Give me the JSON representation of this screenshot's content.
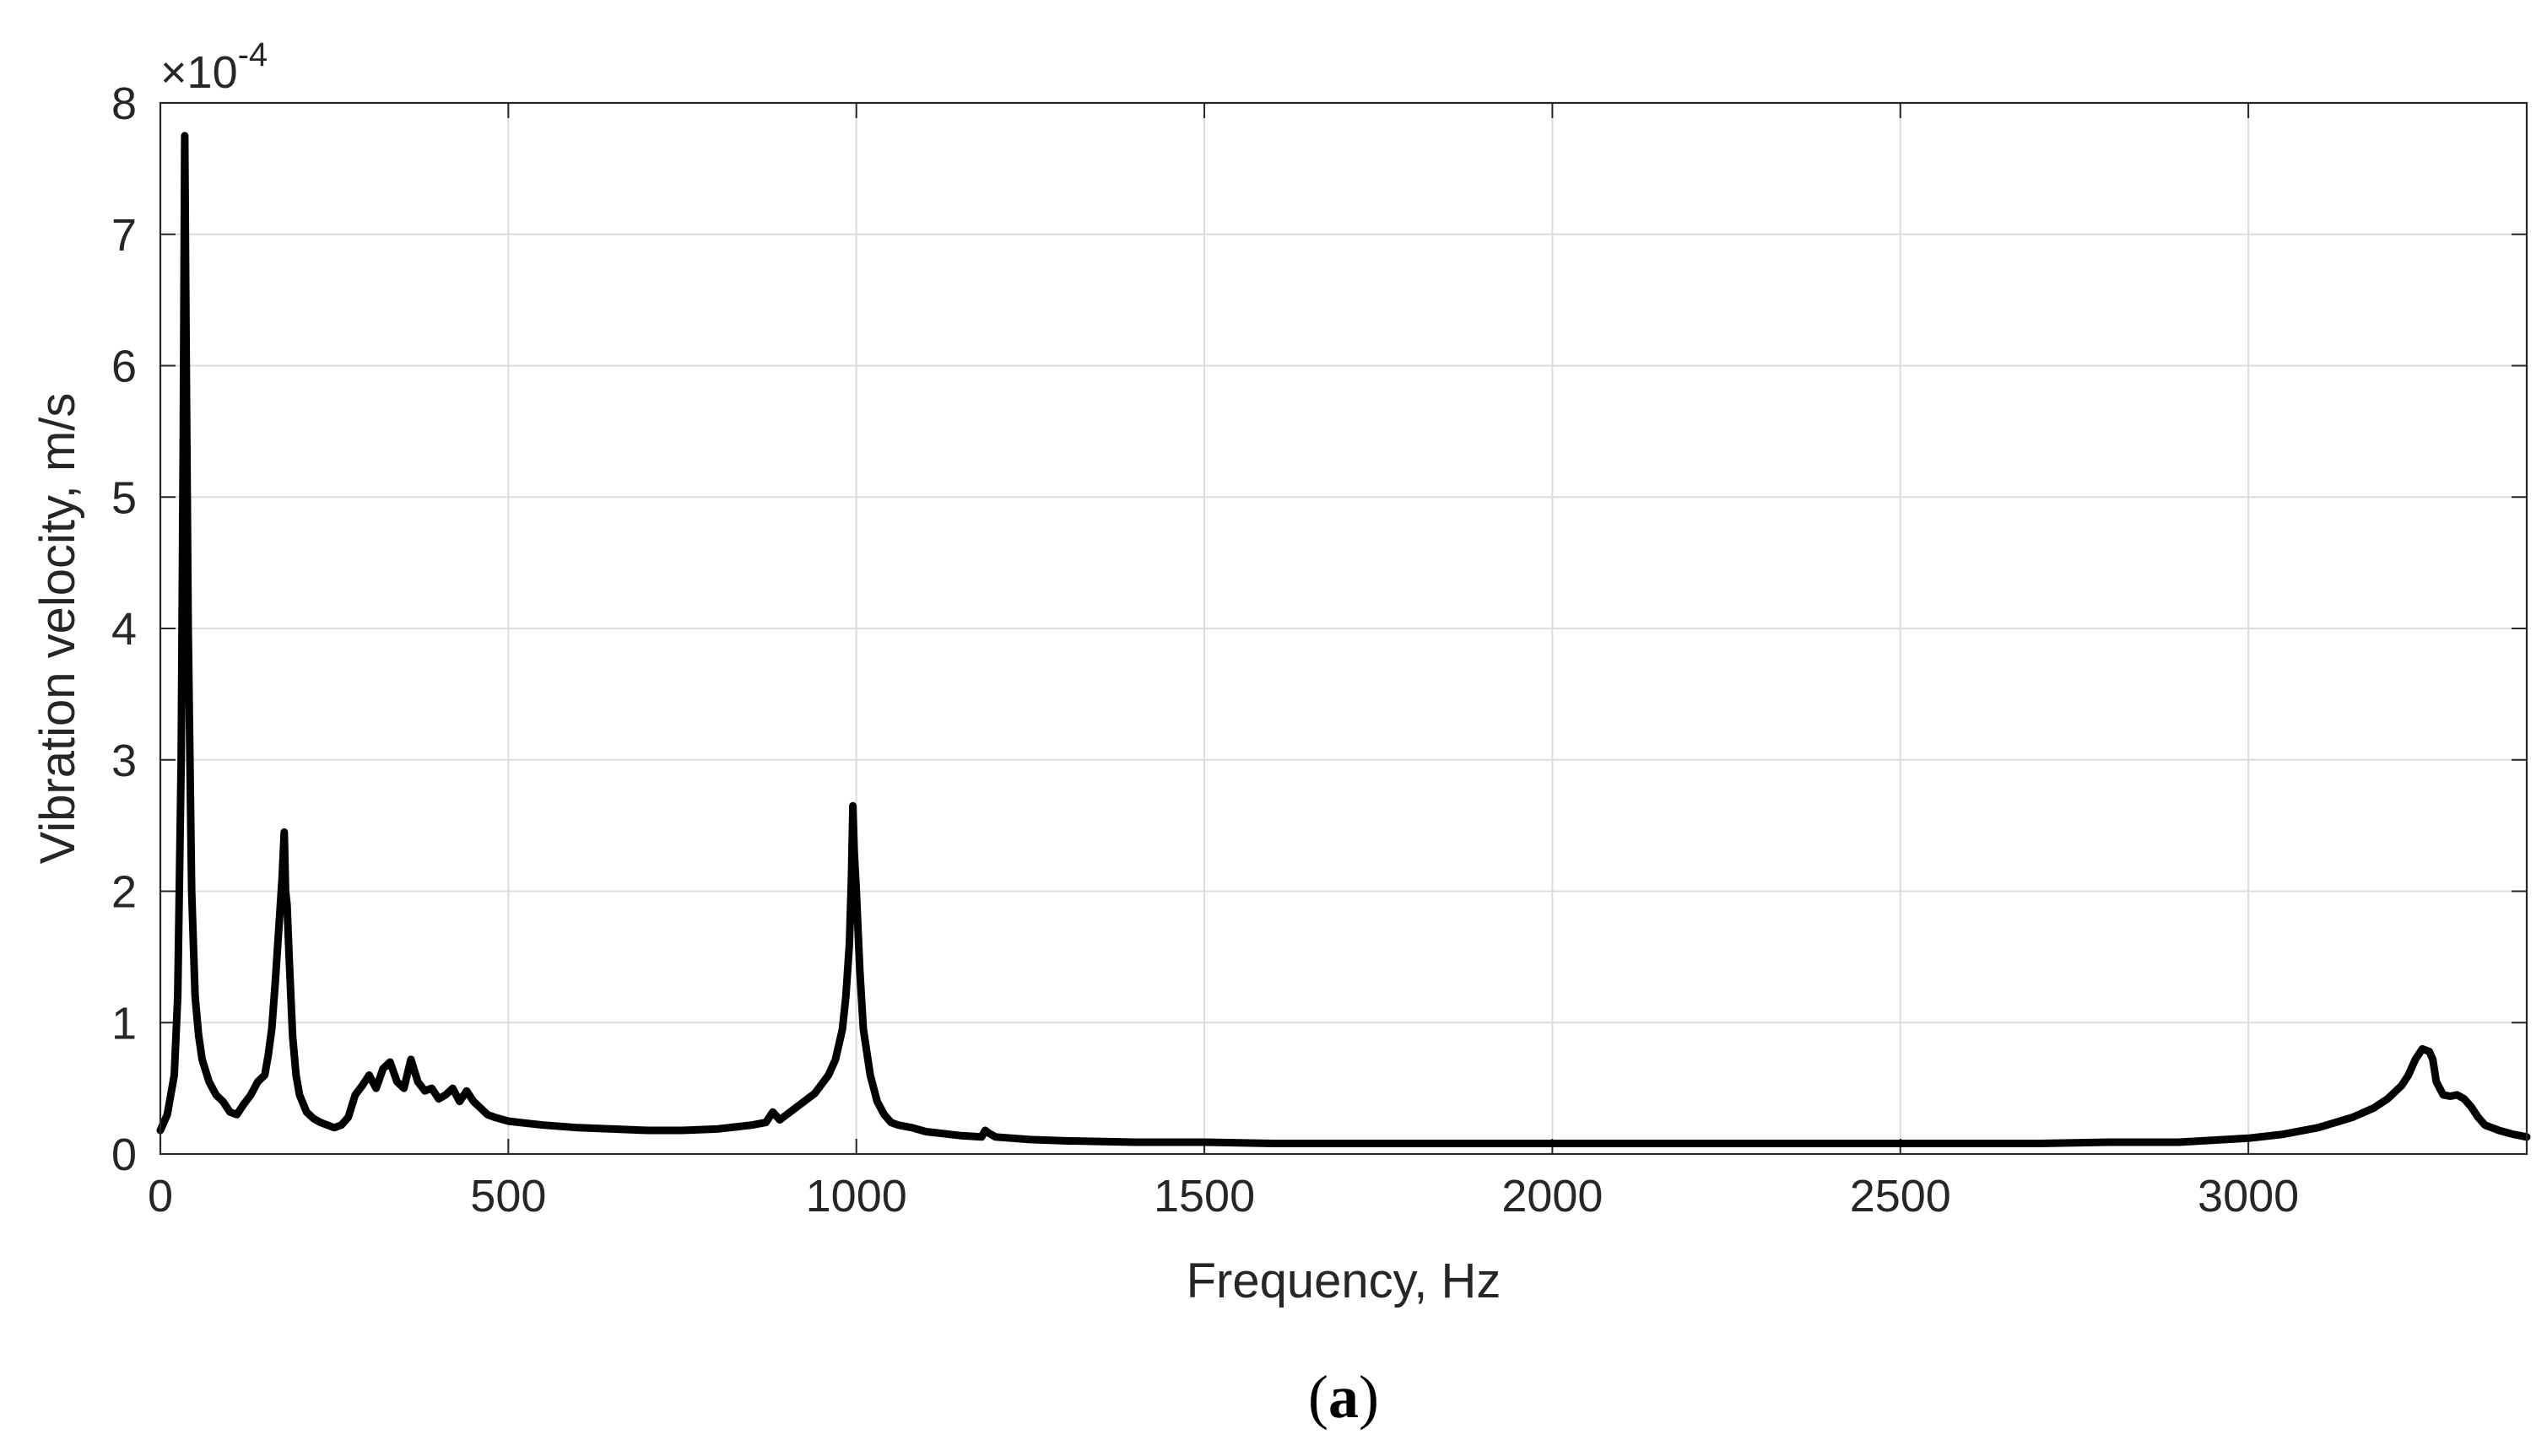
{
  "chart_data": {
    "type": "line",
    "title": "",
    "xlabel": "Frequency, Hz",
    "ylabel": "Vibration velocity, m/s",
    "y_scale_exponent": "-4",
    "y_scale_prefix": "×10",
    "xlim": [
      0,
      3400
    ],
    "ylim": [
      0,
      8
    ],
    "x_ticks": [
      0,
      500,
      1000,
      1500,
      2000,
      2500,
      3000
    ],
    "x_tick_labels": [
      "0",
      "500",
      "1000",
      "1500",
      "2000",
      "2500",
      "3000"
    ],
    "y_ticks": [
      0,
      1,
      2,
      3,
      4,
      5,
      6,
      7,
      8
    ],
    "y_tick_labels": [
      "0",
      "1",
      "2",
      "3",
      "4",
      "5",
      "6",
      "7",
      "8"
    ],
    "grid": true,
    "line_color": "#000000",
    "series": [
      {
        "x": [
          0,
          10,
          20,
          25,
          30,
          33,
          35,
          37,
          40,
          45,
          50,
          55,
          60,
          70,
          80,
          90,
          100,
          110,
          120,
          130,
          140,
          150,
          155,
          160,
          165,
          170,
          175,
          178,
          180,
          182,
          185,
          190,
          195,
          200,
          210,
          220,
          230,
          240,
          250,
          260,
          270,
          280,
          290,
          300,
          310,
          320,
          330,
          340,
          350,
          360,
          370,
          380,
          390,
          400,
          410,
          420,
          430,
          440,
          450,
          460,
          470,
          480,
          500,
          550,
          600,
          650,
          700,
          750,
          800,
          850,
          870,
          880,
          890,
          900,
          920,
          940,
          960,
          970,
          980,
          985,
          990,
          993,
          995,
          997,
          1000,
          1005,
          1010,
          1020,
          1030,
          1040,
          1050,
          1060,
          1080,
          1100,
          1150,
          1180,
          1185,
          1190,
          1200,
          1250,
          1300,
          1400,
          1500,
          1600,
          1700,
          1800,
          1900,
          2000,
          2100,
          2200,
          2300,
          2400,
          2500,
          2600,
          2700,
          2800,
          2900,
          3000,
          3050,
          3100,
          3150,
          3180,
          3200,
          3220,
          3230,
          3240,
          3250,
          3260,
          3265,
          3270,
          3280,
          3290,
          3300,
          3310,
          3320,
          3330,
          3340,
          3360,
          3380,
          3400
        ],
        "y": [
          0.18,
          0.3,
          0.6,
          1.2,
          3.0,
          5.5,
          7.75,
          6.2,
          4.0,
          2.0,
          1.2,
          0.9,
          0.72,
          0.55,
          0.45,
          0.4,
          0.32,
          0.3,
          0.38,
          0.45,
          0.55,
          0.6,
          0.75,
          0.95,
          1.3,
          1.7,
          2.1,
          2.45,
          2.0,
          1.9,
          1.5,
          0.9,
          0.6,
          0.45,
          0.32,
          0.27,
          0.24,
          0.22,
          0.2,
          0.22,
          0.28,
          0.45,
          0.52,
          0.6,
          0.5,
          0.65,
          0.7,
          0.55,
          0.5,
          0.72,
          0.55,
          0.48,
          0.5,
          0.42,
          0.45,
          0.5,
          0.4,
          0.48,
          0.4,
          0.35,
          0.3,
          0.28,
          0.25,
          0.22,
          0.2,
          0.19,
          0.18,
          0.18,
          0.19,
          0.22,
          0.24,
          0.32,
          0.26,
          0.3,
          0.38,
          0.46,
          0.6,
          0.72,
          0.95,
          1.2,
          1.6,
          2.1,
          2.65,
          2.3,
          2.0,
          1.4,
          0.95,
          0.6,
          0.4,
          0.3,
          0.24,
          0.22,
          0.2,
          0.17,
          0.14,
          0.13,
          0.18,
          0.16,
          0.13,
          0.11,
          0.1,
          0.09,
          0.09,
          0.08,
          0.08,
          0.08,
          0.08,
          0.08,
          0.08,
          0.08,
          0.08,
          0.08,
          0.08,
          0.08,
          0.08,
          0.09,
          0.09,
          0.12,
          0.15,
          0.2,
          0.28,
          0.35,
          0.42,
          0.52,
          0.6,
          0.72,
          0.8,
          0.78,
          0.72,
          0.55,
          0.45,
          0.44,
          0.45,
          0.42,
          0.36,
          0.28,
          0.22,
          0.18,
          0.15,
          0.13
        ]
      }
    ]
  },
  "figure": {
    "panel_label_open": "(",
    "panel_label_letter": "a",
    "panel_label_close": ")"
  }
}
